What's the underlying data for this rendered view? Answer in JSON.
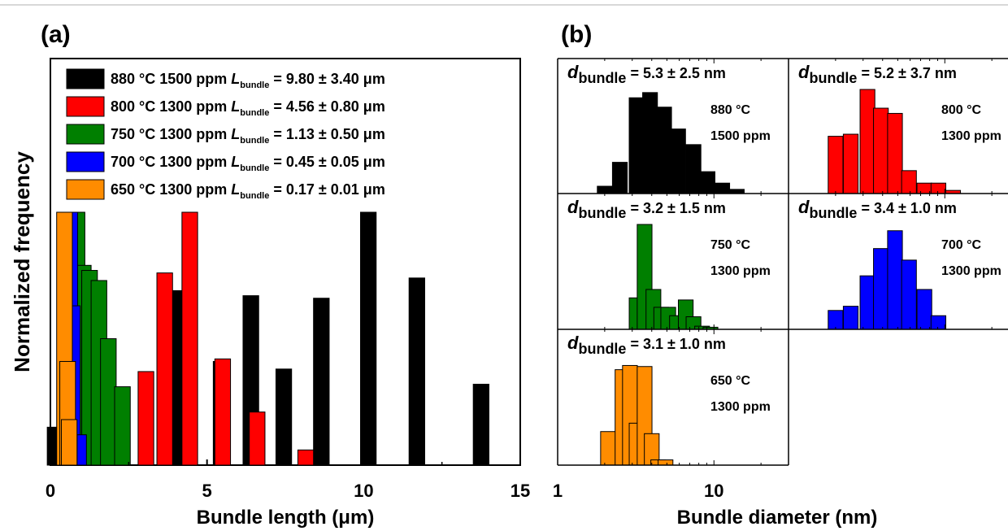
{
  "figure": {
    "panel_a_label": "(a)",
    "panel_b_label": "(b)"
  },
  "chart_data": [
    {
      "type": "bar",
      "panel": "(a)",
      "xlabel": "Bundle length (μm)",
      "ylabel": "Normalized frequency",
      "xlim": [
        0,
        15
      ],
      "ylim": [
        0,
        1.0
      ],
      "x_ticks": [
        "0",
        "5",
        "10",
        "15"
      ],
      "grid": false,
      "legend_position": "top-left",
      "series": [
        {
          "name": "880 °C 1500 ppm",
          "legend_stat_symbol": "L",
          "legend_stat_sub": "bundle",
          "legend_stat_value": "= 9.80 ± 3.40 μm",
          "color": "#000000",
          "bin_width": 0.5,
          "x": [
            0.15,
            4.15,
            5.45,
            6.4,
            7.45,
            8.65,
            10.15,
            11.7,
            13.75
          ],
          "values": [
            0.15,
            0.69,
            0.41,
            0.67,
            0.38,
            0.66,
            1.0,
            0.74,
            0.32
          ]
        },
        {
          "name": "800 °C 1300 ppm",
          "legend_stat_symbol": "L",
          "legend_stat_sub": "bundle",
          "legend_stat_value": "= 4.56 ± 0.80 μm",
          "color": "#ff0000",
          "bin_width": 0.5,
          "x": [
            3.05,
            3.65,
            4.45,
            5.5,
            6.6,
            8.15
          ],
          "values": [
            0.37,
            0.76,
            1.0,
            0.42,
            0.21,
            0.06
          ]
        },
        {
          "name": "750 °C 1300 ppm",
          "legend_stat_symbol": "L",
          "legend_stat_sub": "bundle",
          "legend_stat_value": "= 1.13 ± 0.50 μm",
          "color": "#007f00",
          "bin_width": 0.5,
          "x": [
            0.85,
            1.05,
            1.25,
            1.55,
            1.85,
            2.3
          ],
          "values": [
            1.0,
            0.79,
            0.77,
            0.73,
            0.5,
            0.31
          ]
        },
        {
          "name": "700 °C 1300 ppm",
          "legend_stat_symbol": "L",
          "legend_stat_sub": "bundle",
          "legend_stat_value": "= 0.45 ± 0.05 μm",
          "color": "#0000ff",
          "bin_width": 0.3,
          "x": [
            0.72,
            0.8,
            1.0
          ],
          "values": [
            1.0,
            0.63,
            0.12
          ]
        },
        {
          "name": "650 °C 1300 ppm",
          "legend_stat_symbol": "L",
          "legend_stat_sub": "bundle",
          "legend_stat_value": "= 0.17 ± 0.01 μm",
          "color": "#ff8c00",
          "bin_width": 0.5,
          "x": [
            0.45,
            0.55,
            0.6
          ],
          "values": [
            1.0,
            0.41,
            0.18
          ]
        }
      ]
    },
    {
      "type": "bar",
      "panel": "(b)",
      "xlabel": "Bundle diameter (nm)",
      "x_scale": "log",
      "xlim": [
        1,
        30
      ],
      "x_ticks": [
        "1",
        "10"
      ],
      "subplots": [
        {
          "stat_symbol": "d",
          "stat_sub": "bundle",
          "stat_value": "= 5.3  ± 2.5 nm",
          "temperature": "880 °C",
          "concentration": "1500 ppm",
          "color": "#000000",
          "x": [
            2.0,
            2.5,
            3.2,
            3.9,
            4.8,
            5.9,
            7.4,
            9.1,
            11.3,
            14.0
          ],
          "values": [
            0.07,
            0.3,
            0.92,
            0.97,
            0.83,
            0.62,
            0.47,
            0.21,
            0.1,
            0.04
          ]
        },
        {
          "stat_symbol": "d",
          "stat_sub": "bundle",
          "stat_value": "= 5.2  ± 3.7 nm",
          "temperature": "800 °C",
          "concentration": "1300 ppm",
          "color": "#ff0000",
          "x": [
            2.0,
            2.5,
            3.2,
            3.9,
            4.8,
            5.9,
            7.4,
            9.1,
            11.3
          ],
          "values": [
            0.55,
            0.57,
            1.0,
            0.82,
            0.77,
            0.22,
            0.1,
            0.1,
            0.03
          ]
        },
        {
          "stat_symbol": "d",
          "stat_sub": "bundle",
          "stat_value": "= 3.2  ± 1.5 nm",
          "temperature": "750 °C",
          "concentration": "1300 ppm",
          "color": "#007f00",
          "x": [
            3.2,
            3.6,
            4.1,
            4.6,
            5.1,
            5.8,
            6.6,
            7.4,
            8.4,
            9.5
          ],
          "values": [
            0.3,
            1.0,
            0.38,
            0.21,
            0.21,
            0.13,
            0.28,
            0.12,
            0.03,
            0.02
          ]
        },
        {
          "stat_symbol": "d",
          "stat_sub": "bundle",
          "stat_value": "= 3.4  ± 1.0 nm",
          "temperature": "700 °C",
          "concentration": "1300 ppm",
          "color": "#0000ff",
          "x": [
            2.0,
            2.5,
            3.2,
            3.9,
            4.8,
            5.9,
            7.4,
            9.1
          ],
          "values": [
            0.18,
            0.22,
            0.51,
            0.77,
            0.94,
            0.66,
            0.38,
            0.13
          ]
        },
        {
          "stat_symbol": "d",
          "stat_sub": "bundle",
          "stat_value": "= 3.1  ± 1.0 nm",
          "temperature": "650 °C",
          "concentration": "1300 ppm",
          "color": "#ff8c00",
          "x": [
            2.1,
            2.6,
            2.9,
            3.2,
            3.6,
            4.0,
            4.4,
            4.9
          ],
          "values": [
            0.32,
            0.91,
            0.95,
            0.4,
            0.94,
            0.3,
            0.05,
            0.05
          ]
        }
      ]
    }
  ]
}
